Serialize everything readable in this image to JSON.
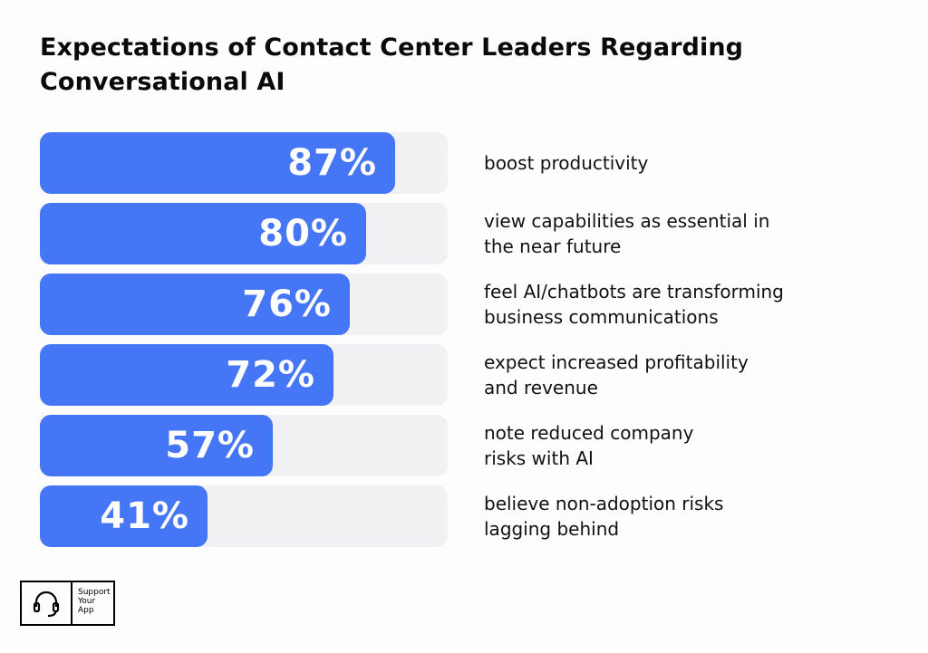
{
  "chart_data": {
    "type": "bar",
    "orientation": "horizontal",
    "title": "Expectations of Contact Center Leaders Regarding Conversational AI",
    "categories": [
      "boost productivity",
      "view capabilities as essential in\nthe near future",
      "feel AI/chatbots are transforming\nbusiness communications",
      "expect increased profitability\nand revenue",
      "note reduced company\nrisks with AI",
      "believe non-adoption risks\nlagging behind"
    ],
    "values": [
      87,
      80,
      76,
      72,
      57,
      41
    ],
    "value_labels": [
      "87%",
      "80%",
      "76%",
      "72%",
      "57%",
      "41%"
    ],
    "xlim": [
      0,
      100
    ],
    "unit": "%"
  },
  "colors": {
    "bar": "#4576f6",
    "track": "#f1f1f3",
    "value_text": "#ffffff"
  },
  "logo": {
    "line1": "Support",
    "line2": "Your",
    "line3": "App",
    "icon": "headset-icon"
  }
}
